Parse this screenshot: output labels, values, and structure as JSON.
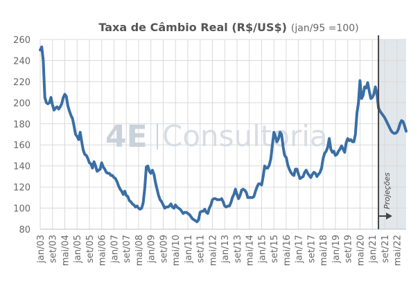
{
  "chart_data": {
    "type": "line",
    "title": "Taxa de Câmbio Real (R$/US$)",
    "subtitle": "(jan/95 =100)",
    "xlabel": "",
    "ylabel": "",
    "ylim": [
      80,
      260
    ],
    "yticks": [
      80,
      100,
      120,
      140,
      160,
      180,
      200,
      220,
      240,
      260
    ],
    "grid": true,
    "x_tick_labels": [
      "jan/03",
      "set/03",
      "mai/04",
      "jan/05",
      "set/05",
      "mai/06",
      "jan/07",
      "set/07",
      "mai/08",
      "jan/09",
      "set/09",
      "mai/10",
      "jan/11",
      "set/11",
      "mai/12",
      "jan/13",
      "set/13",
      "mai/14",
      "jan/15",
      "set/15",
      "mai/16",
      "jan/17",
      "set/17",
      "mai/18",
      "jan/19",
      "set/19",
      "mai/20",
      "jan/21",
      "set/21",
      "mai/22"
    ],
    "projection_start": "mai/21",
    "projection_label": "Projeções",
    "watermark": {
      "logo": "4E",
      "text": "Consultoria"
    },
    "colors": {
      "line": "#3a6ea5",
      "projection_band": "#e2e7ec",
      "grid": "#d9d9d9",
      "marker": "#444444"
    },
    "series": [
      {
        "points": [
          [
            "jan/03",
            250
          ],
          [
            "fev/03",
            253
          ],
          [
            "mar/03",
            240
          ],
          [
            "abr/03",
            205
          ],
          [
            "mai/03",
            200
          ],
          [
            "jun/03",
            199
          ],
          [
            "jul/03",
            200
          ],
          [
            "ago/03",
            205
          ],
          [
            "set/03",
            198
          ],
          [
            "out/03",
            193
          ],
          [
            "nov/03",
            195
          ],
          [
            "dez/03",
            196
          ],
          [
            "jan/04",
            194
          ],
          [
            "fev/04",
            196
          ],
          [
            "mar/04",
            199
          ],
          [
            "abr/04",
            205
          ],
          [
            "mai/04",
            208
          ],
          [
            "jun/04",
            206
          ],
          [
            "jul/04",
            197
          ],
          [
            "ago/04",
            192
          ],
          [
            "set/04",
            188
          ],
          [
            "out/04",
            185
          ],
          [
            "nov/04",
            178
          ],
          [
            "dez/04",
            170
          ],
          [
            "jan/05",
            168
          ],
          [
            "fev/05",
            165
          ],
          [
            "mar/05",
            172
          ],
          [
            "abr/05",
            163
          ],
          [
            "mai/05",
            155
          ],
          [
            "jun/05",
            151
          ],
          [
            "jul/05",
            150
          ],
          [
            "ago/05",
            147
          ],
          [
            "set/05",
            143
          ],
          [
            "out/05",
            142
          ],
          [
            "nov/05",
            138
          ],
          [
            "dez/05",
            144
          ],
          [
            "jan/06",
            140
          ],
          [
            "fev/06",
            135
          ],
          [
            "mar/06",
            136
          ],
          [
            "abr/06",
            137
          ],
          [
            "mai/06",
            143
          ],
          [
            "jun/06",
            139
          ],
          [
            "jul/06",
            137
          ],
          [
            "ago/06",
            134
          ],
          [
            "set/06",
            133
          ],
          [
            "out/06",
            133
          ],
          [
            "nov/06",
            131
          ],
          [
            "dez/06",
            131
          ],
          [
            "jan/07",
            129
          ],
          [
            "fev/07",
            128
          ],
          [
            "mar/07",
            125
          ],
          [
            "abr/07",
            121
          ],
          [
            "mai/07",
            118
          ],
          [
            "jun/07",
            116
          ],
          [
            "jul/07",
            113
          ],
          [
            "ago/07",
            116
          ],
          [
            "set/07",
            112
          ],
          [
            "out/07",
            111
          ],
          [
            "nov/07",
            107
          ],
          [
            "dez/07",
            106
          ],
          [
            "jan/08",
            104
          ],
          [
            "fev/08",
            103
          ],
          [
            "mar/08",
            101
          ],
          [
            "abr/08",
            102
          ],
          [
            "mai/08",
            100
          ],
          [
            "jun/08",
            99
          ],
          [
            "jul/08",
            100
          ],
          [
            "ago/08",
            105
          ],
          [
            "set/08",
            119
          ],
          [
            "out/08",
            139
          ],
          [
            "nov/08",
            140
          ],
          [
            "dez/08",
            135
          ],
          [
            "jan/09",
            133
          ],
          [
            "fev/09",
            136
          ],
          [
            "mar/09",
            132
          ],
          [
            "abr/09",
            124
          ],
          [
            "mai/09",
            118
          ],
          [
            "jun/09",
            112
          ],
          [
            "jul/09",
            108
          ],
          [
            "ago/09",
            106
          ],
          [
            "set/09",
            103
          ],
          [
            "out/09",
            100
          ],
          [
            "nov/09",
            101
          ],
          [
            "dez/09",
            101
          ],
          [
            "jan/10",
            102
          ],
          [
            "fev/10",
            104
          ],
          [
            "mar/10",
            101
          ],
          [
            "abr/10",
            100
          ],
          [
            "mai/10",
            103
          ],
          [
            "jun/10",
            101
          ],
          [
            "jul/10",
            100
          ],
          [
            "ago/10",
            99
          ],
          [
            "set/10",
            97
          ],
          [
            "out/10",
            95
          ],
          [
            "nov/10",
            96
          ],
          [
            "dez/10",
            96
          ],
          [
            "jan/11",
            95
          ],
          [
            "fev/11",
            94
          ],
          [
            "mar/11",
            92
          ],
          [
            "abr/11",
            90
          ],
          [
            "mai/11",
            89
          ],
          [
            "jun/11",
            88
          ],
          [
            "jul/11",
            87
          ],
          [
            "ago/11",
            89
          ],
          [
            "set/11",
            96
          ],
          [
            "out/11",
            97
          ],
          [
            "nov/11",
            97
          ],
          [
            "dez/11",
            99
          ],
          [
            "jan/12",
            96
          ],
          [
            "fev/12",
            95
          ],
          [
            "mar/12",
            100
          ],
          [
            "abr/12",
            103
          ],
          [
            "mai/12",
            108
          ],
          [
            "jun/12",
            109
          ],
          [
            "jul/12",
            109
          ],
          [
            "ago/12",
            108
          ],
          [
            "set/12",
            108
          ],
          [
            "out/12",
            108
          ],
          [
            "nov/12",
            109
          ],
          [
            "dez/12",
            106
          ],
          [
            "jan/13",
            102
          ],
          [
            "fev/13",
            101
          ],
          [
            "mar/13",
            102
          ],
          [
            "abr/13",
            102
          ],
          [
            "mai/13",
            105
          ],
          [
            "jun/13",
            110
          ],
          [
            "jul/13",
            113
          ],
          [
            "ago/13",
            118
          ],
          [
            "set/13",
            113
          ],
          [
            "out/13",
            109
          ],
          [
            "nov/13",
            112
          ],
          [
            "dez/13",
            117
          ],
          [
            "jan/14",
            118
          ],
          [
            "fev/14",
            117
          ],
          [
            "mar/14",
            115
          ],
          [
            "abr/14",
            110
          ],
          [
            "mai/14",
            110
          ],
          [
            "jun/14",
            110
          ],
          [
            "jul/14",
            110
          ],
          [
            "ago/14",
            111
          ],
          [
            "set/14",
            116
          ],
          [
            "out/14",
            120
          ],
          [
            "nov/14",
            123
          ],
          [
            "dez/14",
            123
          ],
          [
            "jan/15",
            122
          ],
          [
            "fev/15",
            130
          ],
          [
            "mar/15",
            140
          ],
          [
            "abr/15",
            138
          ],
          [
            "mai/15",
            138
          ],
          [
            "jun/15",
            141
          ],
          [
            "jul/15",
            147
          ],
          [
            "ago/15",
            160
          ],
          [
            "set/15",
            172
          ],
          [
            "out/15",
            168
          ],
          [
            "nov/15",
            163
          ],
          [
            "dez/15",
            166
          ],
          [
            "jan/16",
            172
          ],
          [
            "fev/16",
            170
          ],
          [
            "mar/16",
            158
          ],
          [
            "abr/16",
            150
          ],
          [
            "mai/16",
            148
          ],
          [
            "jun/16",
            141
          ],
          [
            "jul/16",
            137
          ],
          [
            "ago/16",
            134
          ],
          [
            "set/16",
            132
          ],
          [
            "out/16",
            131
          ],
          [
            "nov/16",
            137
          ],
          [
            "dez/16",
            137
          ],
          [
            "jan/17",
            132
          ],
          [
            "fev/17",
            128
          ],
          [
            "mar/17",
            129
          ],
          [
            "abr/17",
            130
          ],
          [
            "mai/17",
            134
          ],
          [
            "jun/17",
            136
          ],
          [
            "jul/17",
            133
          ],
          [
            "ago/17",
            131
          ],
          [
            "set/17",
            129
          ],
          [
            "out/17",
            132
          ],
          [
            "nov/17",
            134
          ],
          [
            "dez/17",
            133
          ],
          [
            "jan/18",
            130
          ],
          [
            "fev/18",
            132
          ],
          [
            "mar/18",
            134
          ],
          [
            "abr/18",
            138
          ],
          [
            "mai/18",
            147
          ],
          [
            "jun/18",
            152
          ],
          [
            "jul/18",
            154
          ],
          [
            "ago/18",
            158
          ],
          [
            "set/18",
            166
          ],
          [
            "out/18",
            156
          ],
          [
            "nov/18",
            153
          ],
          [
            "dez/18",
            154
          ],
          [
            "jan/19",
            150
          ],
          [
            "fev/19",
            151
          ],
          [
            "mar/19",
            154
          ],
          [
            "abr/19",
            156
          ],
          [
            "mai/19",
            159
          ],
          [
            "jun/19",
            156
          ],
          [
            "jul/19",
            153
          ],
          [
            "ago/19",
            162
          ],
          [
            "set/19",
            166
          ],
          [
            "out/19",
            164
          ],
          [
            "nov/19",
            165
          ],
          [
            "dez/19",
            163
          ],
          [
            "jan/20",
            163
          ],
          [
            "fev/20",
            170
          ],
          [
            "mar/20",
            190
          ],
          [
            "abr/20",
            200
          ],
          [
            "mai/20",
            221
          ],
          [
            "jun/20",
            204
          ],
          [
            "jul/20",
            207
          ],
          [
            "ago/20",
            215
          ],
          [
            "set/20",
            214
          ],
          [
            "out/20",
            219
          ],
          [
            "nov/20",
            211
          ],
          [
            "dez/20",
            204
          ],
          [
            "jan/21",
            205
          ],
          [
            "fev/21",
            208
          ],
          [
            "mar/21",
            215
          ],
          [
            "abr/21",
            209
          ],
          [
            "mai/21",
            195
          ],
          [
            "jun/21",
            192
          ],
          [
            "jul/21",
            190
          ],
          [
            "ago/21",
            188
          ],
          [
            "set/21",
            186
          ],
          [
            "out/21",
            183
          ],
          [
            "nov/21",
            180
          ],
          [
            "dez/21",
            177
          ],
          [
            "jan/22",
            174
          ],
          [
            "fev/22",
            172
          ],
          [
            "mar/22",
            171
          ],
          [
            "abr/22",
            171
          ],
          [
            "mai/22",
            172
          ],
          [
            "jun/22",
            175
          ],
          [
            "jul/22",
            180
          ],
          [
            "ago/22",
            183
          ],
          [
            "set/22",
            182
          ],
          [
            "out/22",
            178
          ],
          [
            "nov/22",
            173
          ]
        ]
      }
    ]
  }
}
